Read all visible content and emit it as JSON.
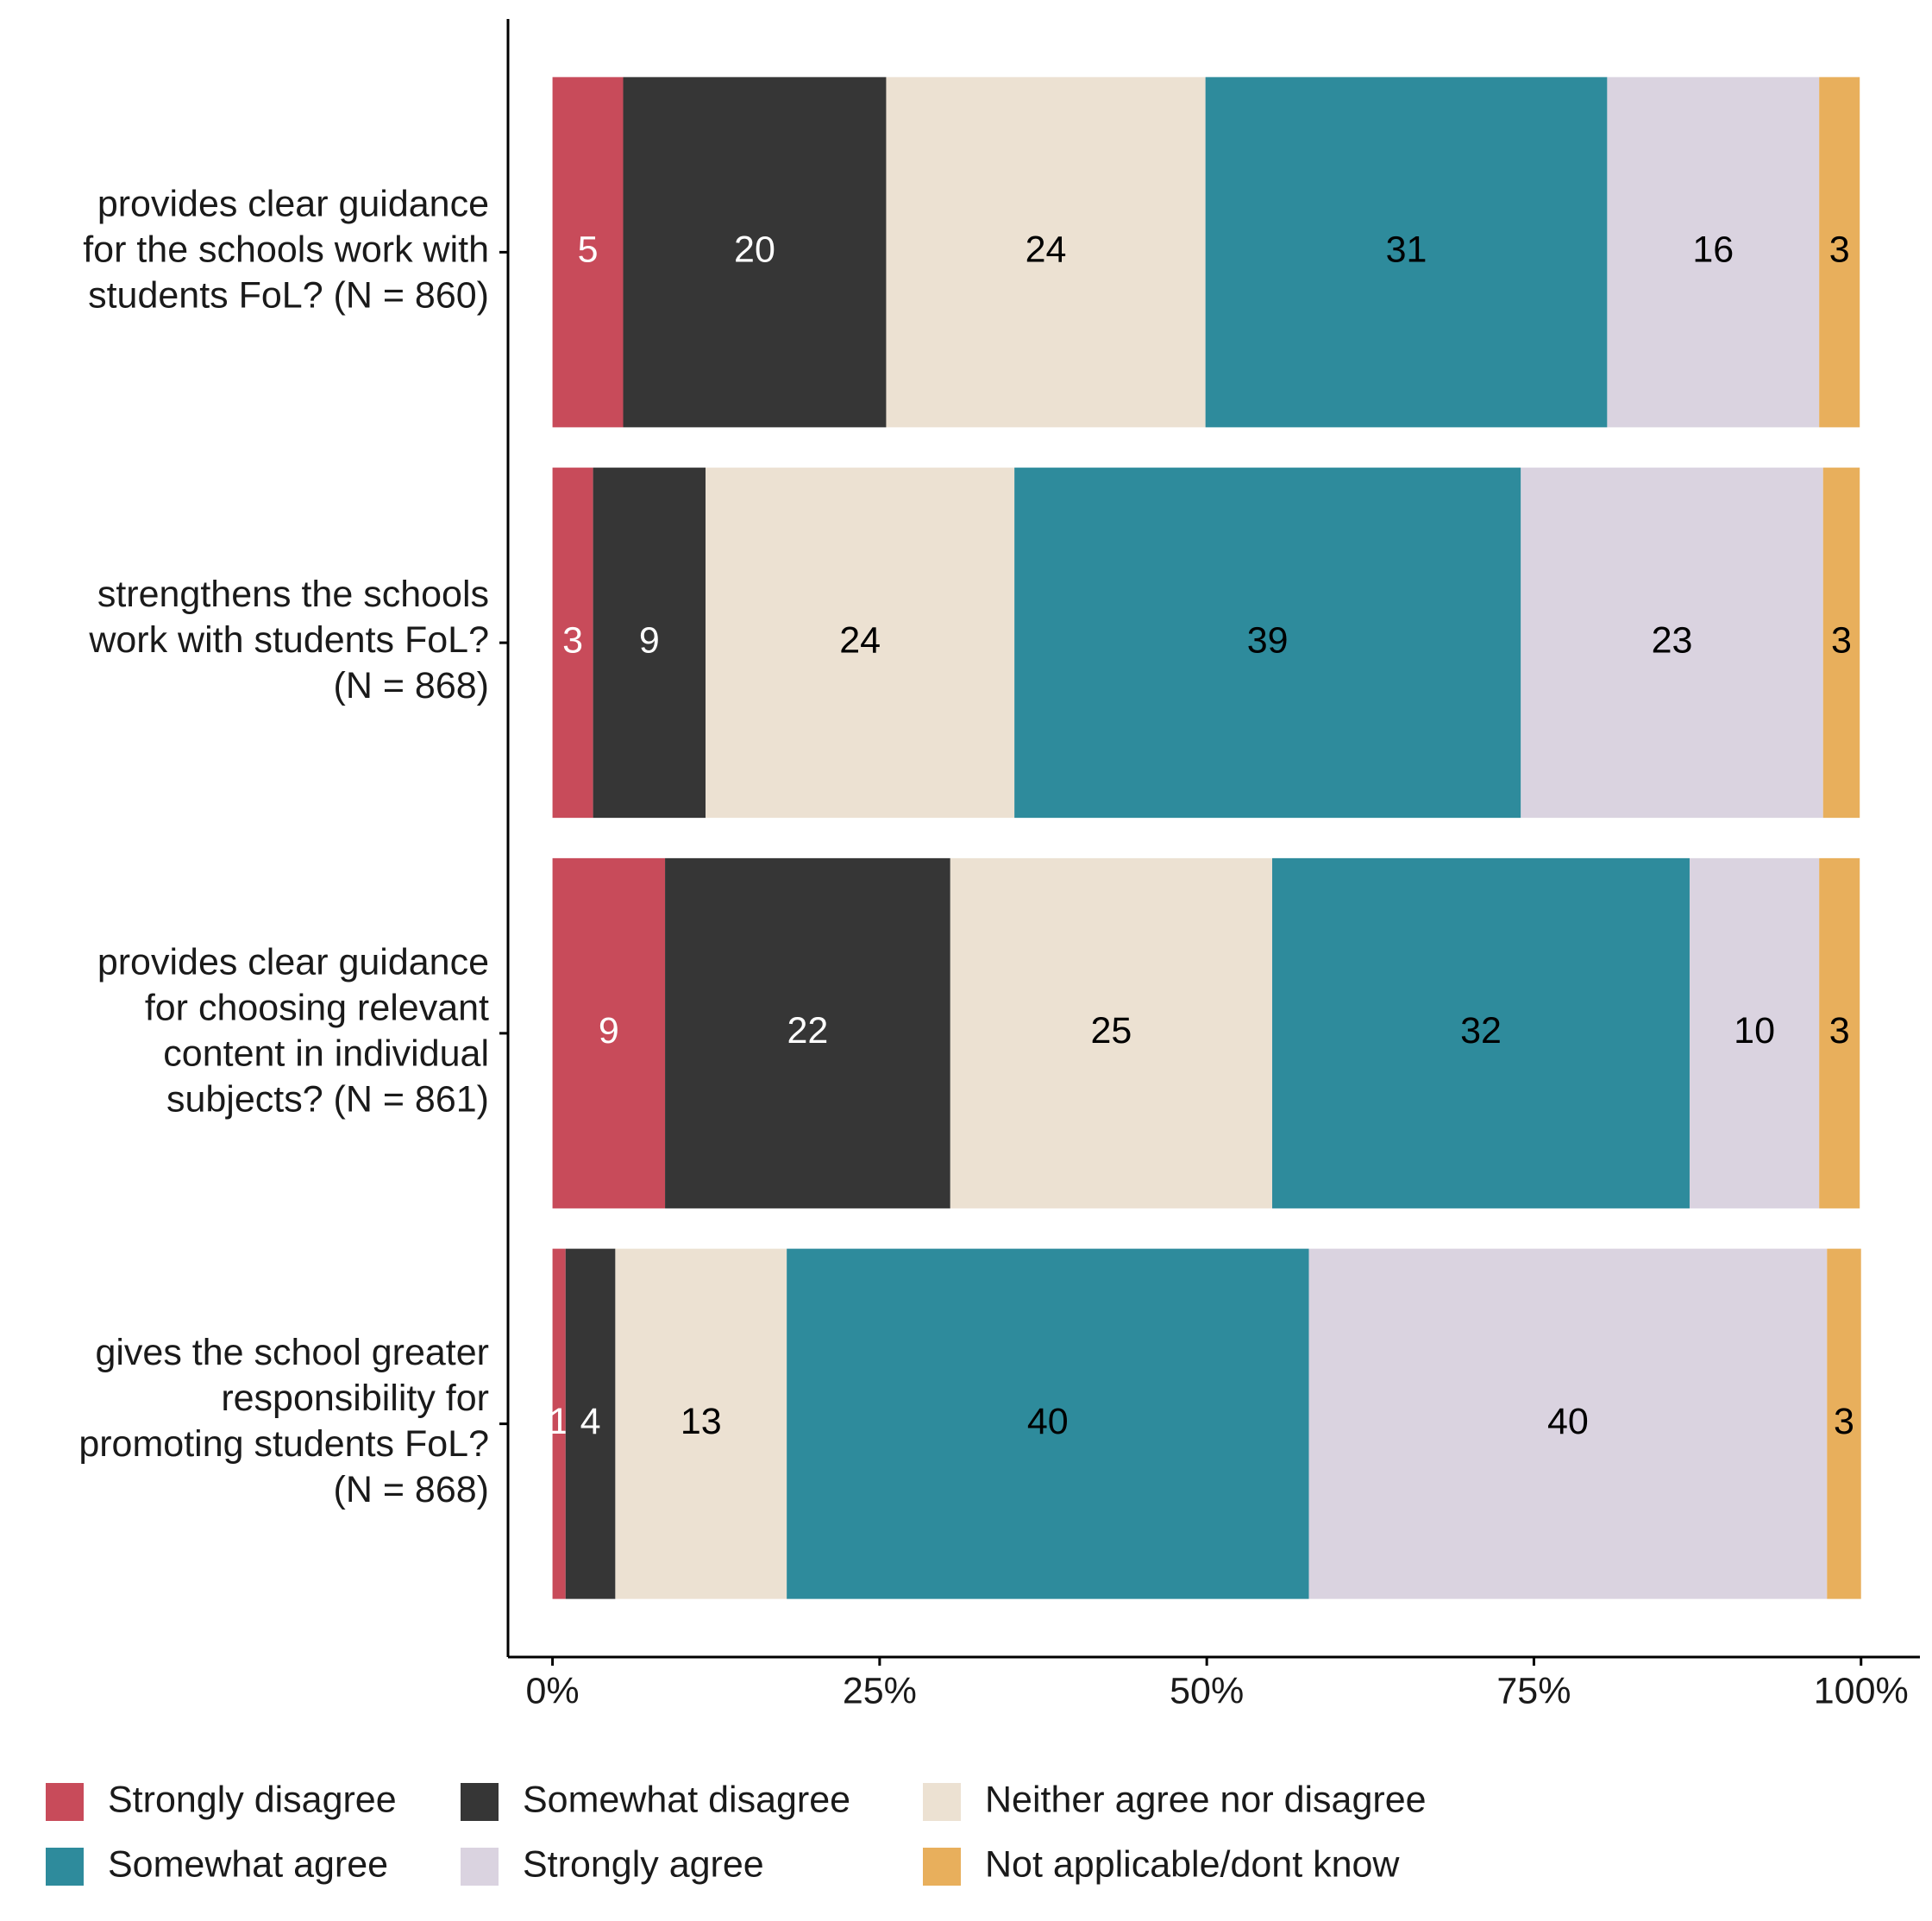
{
  "chart_data": {
    "type": "stacked-bar-horizontal",
    "categories": [
      "provides clear guidance\nfor the schools work with\nstudents FoL? (N = 860)",
      "strengthens the schools\nwork with students FoL?\n(N = 868)",
      "provides clear guidance\nfor choosing relevant\ncontent in individual\nsubjects? (N = 861)",
      "gives the school greater\nresponsibility for\npromoting students FoL?\n(N = 868)"
    ],
    "series": [
      {
        "name": "Strongly disagree",
        "color": "#C84B5A",
        "values": [
          5.4,
          3.1,
          8.6,
          1.0
        ],
        "value_labels": [
          "5",
          "3",
          "9",
          "1"
        ]
      },
      {
        "name": "Somewhat disagree",
        "color": "#363636",
        "values": [
          20.1,
          8.6,
          21.8,
          3.8
        ],
        "value_labels": [
          "20",
          "9",
          "22",
          "4"
        ]
      },
      {
        "name": "Neither agree nor disagree",
        "color": "#ECE1D2",
        "values": [
          24.4,
          23.6,
          24.6,
          13.1
        ],
        "value_labels": [
          "24",
          "24",
          "25",
          "13"
        ]
      },
      {
        "name": "Somewhat agree",
        "color": "#2E8B9C",
        "values": [
          30.7,
          38.7,
          31.9,
          39.9
        ],
        "value_labels": [
          "31",
          "39",
          "32",
          "40"
        ]
      },
      {
        "name": "Strongly agree",
        "color": "#DAD3E0",
        "values": [
          16.2,
          23.1,
          9.9,
          39.6
        ],
        "value_labels": [
          "16",
          "23",
          "10",
          "40"
        ]
      },
      {
        "name": "Not applicable/dont know",
        "color": "#E8AF5C",
        "values": [
          3.1,
          2.8,
          3.1,
          2.6
        ],
        "value_labels": [
          "3",
          "3",
          "3",
          "3"
        ]
      }
    ],
    "xlim": [
      -3.4,
      104.5
    ],
    "xticks": [
      {
        "value": 0,
        "label": "0%"
      },
      {
        "value": 25,
        "label": "25%"
      },
      {
        "value": 50,
        "label": "50%"
      },
      {
        "value": 75,
        "label": "75%"
      },
      {
        "value": 100,
        "label": "100%"
      }
    ],
    "legend": "bottom"
  }
}
